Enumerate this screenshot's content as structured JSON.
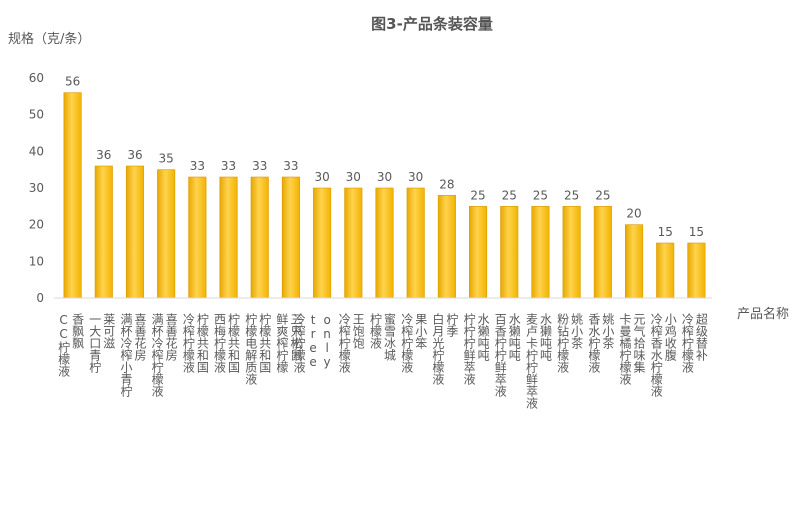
{
  "chart_data": {
    "type": "bar",
    "title": "图3-产品条装容量",
    "ylabel": "规格（克/条）",
    "xlabel": "产品名称",
    "ylim": [
      0,
      60
    ],
    "yticks": [
      0,
      10,
      20,
      30,
      40,
      50,
      60
    ],
    "grid": false,
    "bar_color": "#FFC000",
    "categories": [
      "香飘飘 CC柠檬液",
      "莱可滋 一大口青柠",
      "喜善花房 满杯冷榨小青柠",
      "喜善花房 满杯冷榨柠檬液",
      "柠檬共和国 冷榨柠檬液",
      "柠檬共和国 西梅柠檬液",
      "柠檬共和国 柠檬电解质液",
      "三只松鼠 鲜爽榨柠檬",
      "only tree 冷榨柠檬液",
      "王饱饱 冷榨柠檬液",
      "蜜雪冰城 柠檬液",
      "果小笨 冷榨柠檬液",
      "柠季 白月光柠檬液",
      "水獭吨吨 柠柠柠鲜萃液",
      "水獭吨吨 百香柠柠鲜萃液",
      "水獭吨吨 麦卢卡柠柠鲜萃液",
      "姚小茶 粉钻柠檬液",
      "姚小茶 香水柠檬液",
      "元气拾味集 卡曼橘柠檬液",
      "小鸡收腹 冷榨香水柠檬液",
      "超级替补 冷榨柠檬液"
    ],
    "values": [
      56,
      36,
      36,
      35,
      33,
      33,
      33,
      33,
      30,
      30,
      30,
      30,
      28,
      25,
      25,
      25,
      25,
      25,
      20,
      15,
      15
    ]
  }
}
